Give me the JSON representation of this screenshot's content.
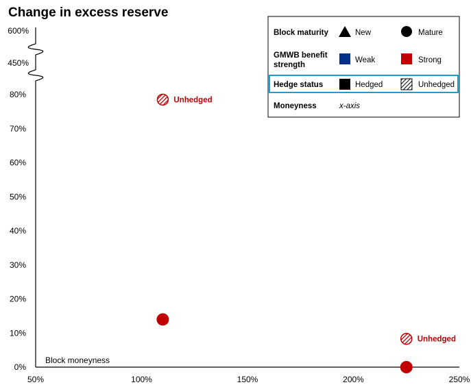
{
  "chart_data": {
    "type": "scatter",
    "title": "Change in excess reserve",
    "xlabel": "Block moneyness",
    "xlim": [
      0.5,
      2.5
    ],
    "x_ticks": [
      "50%",
      "100%",
      "150%",
      "200%",
      "250%"
    ],
    "x_tick_values": [
      0.5,
      1.0,
      1.5,
      2.0,
      2.5
    ],
    "y_ticks": [
      "0%",
      "10%",
      "20%",
      "30%",
      "40%",
      "50%",
      "60%",
      "70%",
      "80%"
    ],
    "y_tick_values": [
      0,
      0.1,
      0.2,
      0.3,
      0.4,
      0.5,
      0.6,
      0.7,
      0.8
    ],
    "y_break_ticks": [
      "450%",
      "600%"
    ],
    "ylim": [
      0,
      0.8
    ],
    "points": [
      {
        "x": 1.1,
        "y": 0.785,
        "maturity": "Mature",
        "strength": "Strong",
        "hedge": "Unhedged",
        "label": "Unhedged"
      },
      {
        "x": 1.1,
        "y": 0.14,
        "maturity": "Mature",
        "strength": "Strong",
        "hedge": "Hedged",
        "label": ""
      },
      {
        "x": 2.25,
        "y": 0.083,
        "maturity": "Mature",
        "strength": "Strong",
        "hedge": "Unhedged",
        "label": "Unhedged"
      },
      {
        "x": 2.25,
        "y": 0.0,
        "maturity": "Mature",
        "strength": "Strong",
        "hedge": "Hedged",
        "label": ""
      }
    ],
    "legend": {
      "position": "top-right",
      "rows": [
        {
          "header": "Block maturity",
          "a_icon": "triangle",
          "a_label": "New",
          "b_icon": "circle",
          "b_label": "Mature"
        },
        {
          "header": "GMWB benefit strength",
          "a_icon": "square-blue",
          "a_label": "Weak",
          "b_icon": "square-red",
          "b_label": "Strong"
        },
        {
          "header": "Hedge status",
          "a_icon": "square-black",
          "a_label": "Hedged",
          "b_icon": "square-hatched",
          "b_label": "Unhedged"
        },
        {
          "header": "Moneyness",
          "a_label": "x-axis"
        }
      ]
    },
    "colors": {
      "strong": "#c00000",
      "weak": "#003087",
      "highlight": "#1f9bd1"
    }
  }
}
